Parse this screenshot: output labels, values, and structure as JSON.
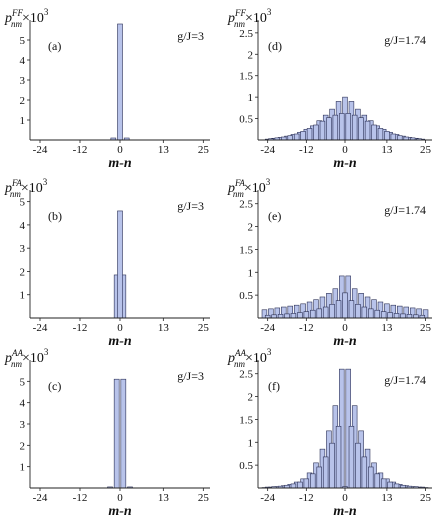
{
  "colors": {
    "bar_fill": "#b8c3ea",
    "bar_stroke": "#2a2f55",
    "axis": "#222222"
  },
  "chart_data": [
    {
      "type": "bar",
      "label": "(a)",
      "param": "g/J=3",
      "ylabel": {
        "base": "p",
        "sup": "FF",
        "sub": "nm",
        "factor": "×10",
        "exp": "3"
      },
      "xlabel": "m-n",
      "xlim": [
        -27,
        27
      ],
      "ylim": [
        0,
        6
      ],
      "xticks": [
        -24,
        -12,
        0,
        13,
        25
      ],
      "yticks": [
        1,
        2,
        3,
        4,
        5
      ],
      "series": [
        {
          "x": [
            -2,
            0,
            2
          ],
          "y": [
            0.1,
            5.8,
            0.1
          ]
        }
      ]
    },
    {
      "type": "bar",
      "label": "(d)",
      "param": "g/J=1.74",
      "ylabel": {
        "base": "p",
        "sup": "FF",
        "sub": "nm",
        "factor": "×10",
        "exp": "3"
      },
      "xlabel": "m-n",
      "xlim": [
        -27,
        27
      ],
      "ylim": [
        0,
        2.8
      ],
      "xticks": [
        -24,
        -12,
        0,
        13,
        25
      ],
      "yticks": [
        0.5,
        1,
        1.5,
        2,
        2.5
      ],
      "series": [
        {
          "x": [
            -24,
            -22,
            -20,
            -18,
            -16,
            -14,
            -12,
            -10,
            -8,
            -6,
            -4,
            -2,
            0,
            2,
            4,
            6,
            8,
            10,
            12,
            14,
            16,
            18,
            20,
            22,
            24
          ],
          "y": [
            0.02,
            0.04,
            0.06,
            0.09,
            0.13,
            0.18,
            0.25,
            0.33,
            0.45,
            0.58,
            0.72,
            0.9,
            1.0,
            0.9,
            0.72,
            0.58,
            0.45,
            0.33,
            0.25,
            0.18,
            0.13,
            0.09,
            0.06,
            0.04,
            0.02
          ]
        },
        {
          "x": [
            -23,
            -21,
            -19,
            -17,
            -15,
            -13,
            -11,
            -9,
            -7,
            -5,
            -3,
            -1,
            1,
            3,
            5,
            7,
            9,
            11,
            13,
            15,
            17,
            19,
            21,
            23
          ],
          "y": [
            0.03,
            0.05,
            0.07,
            0.1,
            0.14,
            0.2,
            0.27,
            0.35,
            0.44,
            0.52,
            0.58,
            0.62,
            0.62,
            0.58,
            0.52,
            0.44,
            0.35,
            0.27,
            0.2,
            0.14,
            0.1,
            0.07,
            0.05,
            0.03
          ]
        }
      ]
    },
    {
      "type": "bar",
      "label": "(b)",
      "param": "g/J=3",
      "ylabel": {
        "base": "p",
        "sup": "FA",
        "sub": "nm",
        "factor": "×10",
        "exp": "3"
      },
      "xlabel": "m-n",
      "xlim": [
        -27,
        27
      ],
      "ylim": [
        0,
        5.5
      ],
      "xticks": [
        -24,
        -12,
        0,
        13,
        25
      ],
      "yticks": [
        1,
        2,
        3,
        4,
        5
      ],
      "series": [
        {
          "x": [
            -1,
            1
          ],
          "y": [
            1.85,
            1.85
          ]
        },
        {
          "x": [
            0
          ],
          "y": [
            4.6
          ]
        }
      ]
    },
    {
      "type": "bar",
      "label": "(e)",
      "param": "g/J=1.74",
      "ylabel": {
        "base": "p",
        "sup": "FA",
        "sub": "nm",
        "factor": "×10",
        "exp": "3"
      },
      "xlabel": "m-n",
      "xlim": [
        -27,
        27
      ],
      "ylim": [
        0,
        2.8
      ],
      "xticks": [
        -24,
        -12,
        0,
        13,
        25
      ],
      "yticks": [
        0.5,
        1,
        1.5,
        2,
        2.5
      ],
      "series": [
        {
          "x": [
            -25,
            -23,
            -21,
            -19,
            -17,
            -15,
            -13,
            -11,
            -9,
            -7,
            -5,
            -3,
            -1,
            1,
            3,
            5,
            7,
            9,
            11,
            13,
            15,
            17,
            19,
            21,
            23,
            25
          ],
          "y": [
            0.18,
            0.2,
            0.22,
            0.24,
            0.26,
            0.28,
            0.31,
            0.35,
            0.4,
            0.46,
            0.54,
            0.64,
            0.92,
            0.92,
            0.64,
            0.54,
            0.46,
            0.4,
            0.35,
            0.31,
            0.28,
            0.26,
            0.24,
            0.22,
            0.2,
            0.18
          ]
        },
        {
          "x": [
            -24,
            -22,
            -20,
            -18,
            -16,
            -14,
            -12,
            -10,
            -8,
            -6,
            -4,
            -2,
            0,
            2,
            4,
            6,
            8,
            10,
            12,
            14,
            16,
            18,
            20,
            22,
            24
          ],
          "y": [
            0.06,
            0.07,
            0.08,
            0.09,
            0.1,
            0.12,
            0.14,
            0.17,
            0.2,
            0.24,
            0.3,
            0.38,
            0.55,
            0.38,
            0.3,
            0.24,
            0.2,
            0.17,
            0.14,
            0.12,
            0.1,
            0.09,
            0.08,
            0.07,
            0.06
          ]
        }
      ]
    },
    {
      "type": "bar",
      "label": "(c)",
      "param": "g/J=3",
      "ylabel": {
        "base": "p",
        "sup": "AA",
        "sub": "nm",
        "factor": "×10",
        "exp": "3"
      },
      "xlabel": "m-n",
      "xlim": [
        -27,
        27
      ],
      "ylim": [
        0,
        6
      ],
      "xticks": [
        -24,
        -12,
        0,
        13,
        25
      ],
      "yticks": [
        1,
        2,
        3,
        4,
        5
      ],
      "series": [
        {
          "x": [
            -3,
            -1,
            1,
            3
          ],
          "y": [
            0.05,
            5.1,
            5.1,
            0.05
          ]
        }
      ]
    },
    {
      "type": "bar",
      "label": "(f)",
      "param": "g/J=1.74",
      "ylabel": {
        "base": "p",
        "sup": "AA",
        "sub": "nm",
        "factor": "×10",
        "exp": "3"
      },
      "xlabel": "m-n",
      "xlim": [
        -27,
        27
      ],
      "ylim": [
        0,
        2.8
      ],
      "xticks": [
        -24,
        -12,
        0,
        13,
        25
      ],
      "yticks": [
        0.5,
        1,
        1.5,
        2,
        2.5
      ],
      "series": [
        {
          "x": [
            -25,
            -23,
            -21,
            -19,
            -17,
            -15,
            -13,
            -11,
            -9,
            -7,
            -5,
            -3,
            -1,
            1,
            3,
            5,
            7,
            9,
            11,
            13,
            15,
            17,
            19,
            21,
            23,
            25
          ],
          "y": [
            0.01,
            0.02,
            0.03,
            0.05,
            0.08,
            0.13,
            0.2,
            0.33,
            0.55,
            0.85,
            1.25,
            1.8,
            2.6,
            2.6,
            1.8,
            1.25,
            0.85,
            0.55,
            0.33,
            0.2,
            0.13,
            0.08,
            0.05,
            0.03,
            0.02,
            0.01
          ]
        },
        {
          "x": [
            -24,
            -22,
            -20,
            -18,
            -16,
            -14,
            -12,
            -10,
            -8,
            -6,
            -4,
            -2,
            0,
            2,
            4,
            6,
            8,
            10,
            12,
            14,
            16,
            18,
            20,
            22,
            24
          ],
          "y": [
            0.02,
            0.03,
            0.04,
            0.06,
            0.09,
            0.13,
            0.2,
            0.31,
            0.46,
            0.68,
            0.98,
            1.35,
            0.03,
            1.35,
            0.98,
            0.68,
            0.46,
            0.31,
            0.2,
            0.13,
            0.09,
            0.06,
            0.04,
            0.03,
            0.02
          ]
        }
      ]
    }
  ]
}
